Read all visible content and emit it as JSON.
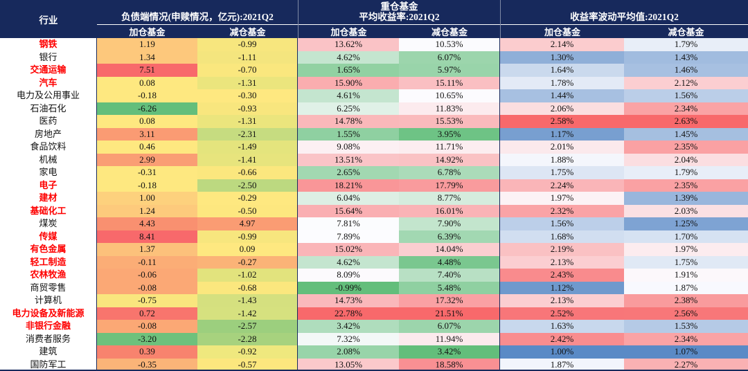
{
  "header": {
    "industry_label": "行业",
    "group1": {
      "line1": "",
      "line2": "负债端情况(申赎情况，亿元):2021Q2"
    },
    "group2": {
      "line1": "重仓基金",
      "line2": "平均收益率:2021Q2"
    },
    "group3": {
      "line1": "",
      "line2": "收益率波动平均值:2021Q2"
    },
    "sub_add": "加仓基金",
    "sub_sub": "减仓基金"
  },
  "colors": {
    "header_bg": "#17295C",
    "header_text": "#FFFFFF",
    "industry_highlight": "#FE0000",
    "body_text": "#111111",
    "scale_return": {
      "min": "#63BE7B",
      "mid": "#FCFCFF",
      "max": "#F8696B"
    },
    "scale_volatility": {
      "min": "#5A8AC6",
      "mid": "#FCFCFF",
      "max": "#F8696B"
    }
  },
  "chart_data": {
    "type": "heatmap",
    "column_groups": [
      "负债端情况(申赎情况，亿元):2021Q2",
      "重仓基金平均收益率:2021Q2",
      "收益率波动平均值:2021Q2"
    ],
    "subcolumns": [
      "加仓基金",
      "减仓基金"
    ],
    "value_units": {
      "flow": "亿元",
      "ret": "%",
      "vol": "%"
    },
    "rows": [
      {
        "industry": "钢铁",
        "red": true,
        "flow_add": 1.19,
        "flow_sub": -0.99,
        "flow_add_bg": "#FDC87C",
        "flow_sub_bg": "#F7E67E",
        "ret_add": 13.62,
        "ret_sub": 10.53,
        "vol_add": 2.14,
        "vol_sub": 1.79
      },
      {
        "industry": "银行",
        "red": false,
        "flow_add": 1.34,
        "flow_sub": -1.11,
        "flow_add_bg": "#FDC87C",
        "flow_sub_bg": "#F4E57E",
        "ret_add": 4.62,
        "ret_sub": 6.07,
        "vol_add": 1.3,
        "vol_sub": 1.43
      },
      {
        "industry": "交通运输",
        "red": true,
        "flow_add": 7.51,
        "flow_sub": -0.7,
        "flow_add_bg": "#F8696B",
        "flow_sub_bg": "#FAE77E",
        "ret_add": 1.65,
        "ret_sub": 5.97,
        "vol_add": 1.64,
        "vol_sub": 1.46
      },
      {
        "industry": "汽车",
        "red": true,
        "flow_add": 0.08,
        "flow_sub": -1.31,
        "flow_add_bg": "#FEE880",
        "flow_sub_bg": "#EBE57D",
        "ret_add": 15.9,
        "ret_sub": 15.11,
        "vol_add": 1.78,
        "vol_sub": 2.12
      },
      {
        "industry": "电力及公用事业",
        "red": false,
        "flow_add": -0.18,
        "flow_sub": -0.3,
        "flow_add_bg": "#FEE880",
        "flow_sub_bg": "#FEE880",
        "ret_add": 4.61,
        "ret_sub": 10.65,
        "vol_add": 1.44,
        "vol_sub": 1.56
      },
      {
        "industry": "石油石化",
        "red": false,
        "flow_add": -6.26,
        "flow_sub": -0.93,
        "flow_add_bg": "#63BE7B",
        "flow_sub_bg": "#F8E67E",
        "ret_add": 6.25,
        "ret_sub": 11.83,
        "vol_add": 2.06,
        "vol_sub": 2.34
      },
      {
        "industry": "医药",
        "red": false,
        "flow_add": 0.08,
        "flow_sub": -1.31,
        "flow_add_bg": "#FEE880",
        "flow_sub_bg": "#EBE57D",
        "ret_add": 14.78,
        "ret_sub": 15.53,
        "vol_add": 2.58,
        "vol_sub": 2.63
      },
      {
        "industry": "房地产",
        "red": false,
        "flow_add": 3.11,
        "flow_sub": -2.31,
        "flow_add_bg": "#FA9B73",
        "flow_sub_bg": "#C6DC80",
        "ret_add": 1.55,
        "ret_sub": 3.95,
        "vol_add": 1.17,
        "vol_sub": 1.45
      },
      {
        "industry": "食品饮料",
        "red": false,
        "flow_add": 0.46,
        "flow_sub": -1.49,
        "flow_add_bg": "#FEE880",
        "flow_sub_bg": "#E4E47D",
        "ret_add": 9.08,
        "ret_sub": 11.71,
        "vol_add": 2.01,
        "vol_sub": 2.35
      },
      {
        "industry": "机械",
        "red": false,
        "flow_add": 2.99,
        "flow_sub": -1.41,
        "flow_add_bg": "#FA9E74",
        "flow_sub_bg": "#E7E47D",
        "ret_add": 13.51,
        "ret_sub": 14.92,
        "vol_add": 1.88,
        "vol_sub": 2.04
      },
      {
        "industry": "家电",
        "red": false,
        "flow_add": -0.31,
        "flow_sub": -0.66,
        "flow_add_bg": "#FEE880",
        "flow_sub_bg": "#FBE77E",
        "ret_add": 2.65,
        "ret_sub": 6.78,
        "vol_add": 1.75,
        "vol_sub": 1.79
      },
      {
        "industry": "电子",
        "red": true,
        "flow_add": -0.18,
        "flow_sub": -2.5,
        "flow_add_bg": "#FEE880",
        "flow_sub_bg": "#BCD980",
        "ret_add": 18.21,
        "ret_sub": 17.79,
        "vol_add": 2.24,
        "vol_sub": 2.35
      },
      {
        "industry": "建材",
        "red": true,
        "flow_add": 1.0,
        "flow_sub": -0.29,
        "flow_add_bg": "#FDD17D",
        "flow_sub_bg": "#FEE880",
        "ret_add": 6.04,
        "ret_sub": 8.77,
        "vol_add": 1.97,
        "vol_sub": 1.39
      },
      {
        "industry": "基础化工",
        "red": true,
        "flow_add": 1.24,
        "flow_sub": -0.5,
        "flow_add_bg": "#FDCA7C",
        "flow_sub_bg": "#FDE77F",
        "ret_add": 15.64,
        "ret_sub": 16.01,
        "vol_add": 2.32,
        "vol_sub": 2.03
      },
      {
        "industry": "煤炭",
        "red": false,
        "flow_add": 4.43,
        "flow_sub": 4.97,
        "flow_add_bg": "#F99070",
        "flow_sub_bg": "#FA9C73",
        "ret_add": 7.81,
        "ret_sub": 7.9,
        "vol_add": 1.56,
        "vol_sub": 1.25
      },
      {
        "industry": "传媒",
        "red": true,
        "flow_add": 8.41,
        "flow_sub": -0.99,
        "flow_add_bg": "#F8696B",
        "flow_sub_bg": "#F7E67E",
        "ret_add": 7.89,
        "ret_sub": 6.39,
        "vol_add": 1.68,
        "vol_sub": 1.7
      },
      {
        "industry": "有色金属",
        "red": true,
        "flow_add": 1.37,
        "flow_sub": 0.09,
        "flow_add_bg": "#FCC17B",
        "flow_sub_bg": "#FEE880",
        "ret_add": 15.02,
        "ret_sub": 14.04,
        "vol_add": 2.19,
        "vol_sub": 1.97
      },
      {
        "industry": "轻工制造",
        "red": true,
        "flow_add": -0.11,
        "flow_sub": -0.27,
        "flow_add_bg": "#FBAD76",
        "flow_sub_bg": "#FBB377",
        "ret_add": 4.62,
        "ret_sub": 4.48,
        "vol_add": 2.13,
        "vol_sub": 1.75
      },
      {
        "industry": "农林牧渔",
        "red": true,
        "flow_add": -0.06,
        "flow_sub": -1.02,
        "flow_add_bg": "#FBA875",
        "flow_sub_bg": "#E2E37D",
        "ret_add": 8.09,
        "ret_sub": 7.4,
        "vol_add": 2.43,
        "vol_sub": 1.91
      },
      {
        "industry": "商贸零售",
        "red": false,
        "flow_add": -0.08,
        "flow_sub": -0.68,
        "flow_add_bg": "#FBA875",
        "flow_sub_bg": "#FBE77E",
        "ret_add": -0.99,
        "ret_sub": 5.48,
        "vol_add": 1.12,
        "vol_sub": 1.87
      },
      {
        "industry": "计算机",
        "red": false,
        "flow_add": -0.75,
        "flow_sub": -1.43,
        "flow_add_bg": "#F9E67E",
        "flow_sub_bg": "#D5E07F",
        "ret_add": 14.73,
        "ret_sub": 17.32,
        "vol_add": 2.13,
        "vol_sub": 2.38
      },
      {
        "industry": "电力设备及新能源",
        "red": true,
        "flow_add": 0.72,
        "flow_sub": -1.42,
        "flow_add_bg": "#F8756D",
        "flow_sub_bg": "#D6E17F",
        "ret_add": 22.78,
        "ret_sub": 21.51,
        "vol_add": 2.52,
        "vol_sub": 2.56
      },
      {
        "industry": "非银行金融",
        "red": true,
        "flow_add": -0.08,
        "flow_sub": -2.57,
        "flow_add_bg": "#FBA875",
        "flow_sub_bg": "#9CCF7E",
        "ret_add": 3.42,
        "ret_sub": 6.07,
        "vol_add": 1.63,
        "vol_sub": 1.53
      },
      {
        "industry": "消费者服务",
        "red": false,
        "flow_add": -3.2,
        "flow_sub": -2.28,
        "flow_add_bg": "#6EC17C",
        "flow_sub_bg": "#A7D27E",
        "ret_add": 7.32,
        "ret_sub": 11.94,
        "vol_add": 2.42,
        "vol_sub": 2.34
      },
      {
        "industry": "建筑",
        "red": false,
        "flow_add": 0.39,
        "flow_sub": -0.92,
        "flow_add_bg": "#F8836E",
        "flow_sub_bg": "#EFE87E",
        "ret_add": 2.08,
        "ret_sub": 3.42,
        "vol_add": 1.0,
        "vol_sub": 1.07
      },
      {
        "industry": "国防军工",
        "red": false,
        "flow_add": -0.35,
        "flow_sub": -0.57,
        "flow_add_bg": "#FBB478",
        "flow_sub_bg": "#FCE77E",
        "ret_add": 13.05,
        "ret_sub": 18.58,
        "vol_add": 1.87,
        "vol_sub": 2.27
      }
    ]
  }
}
